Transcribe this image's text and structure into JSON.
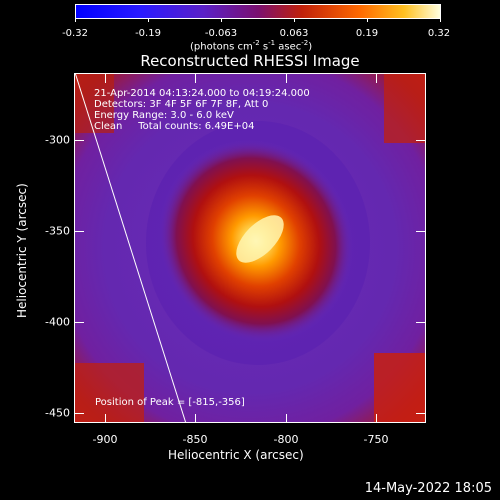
{
  "colorbar": {
    "ticks": [
      "-0.32",
      "-0.19",
      "-0.063",
      "0.063",
      "0.19",
      "0.32"
    ],
    "units_text": "(photons cm",
    "units_sup1": "-2",
    "units_mid": " s",
    "units_sup2": "-1",
    "units_mid2": " asec",
    "units_sup3": "-2",
    "units_end": ")"
  },
  "plot": {
    "title": "Reconstructed RHESSI Image",
    "info_lines": [
      "21-Apr-2014 04:13:24.000 to 04:19:24.000",
      "Detectors: 3F 4F 5F 6F 7F 8F, Att 0",
      "Energy Range: 3.0 - 6.0 keV",
      "Clean     Total counts: 6.49E+04"
    ],
    "peak_text": "Position of Peak = [-815,-356]",
    "xlabel": "Heliocentric X (arcsec)",
    "ylabel": "Heliocentric Y (arcsec)",
    "xticks": [
      "-900",
      "-850",
      "-800",
      "-750"
    ],
    "yticks": [
      "-300",
      "-350",
      "-400",
      "-450"
    ],
    "xlim": [
      -918,
      -725
    ],
    "ylim": [
      -455,
      -267
    ],
    "peak": [
      -815,
      -356
    ],
    "colormap": "hot-blue"
  },
  "footer": {
    "timestamp": "14-May-2022 18:05"
  }
}
